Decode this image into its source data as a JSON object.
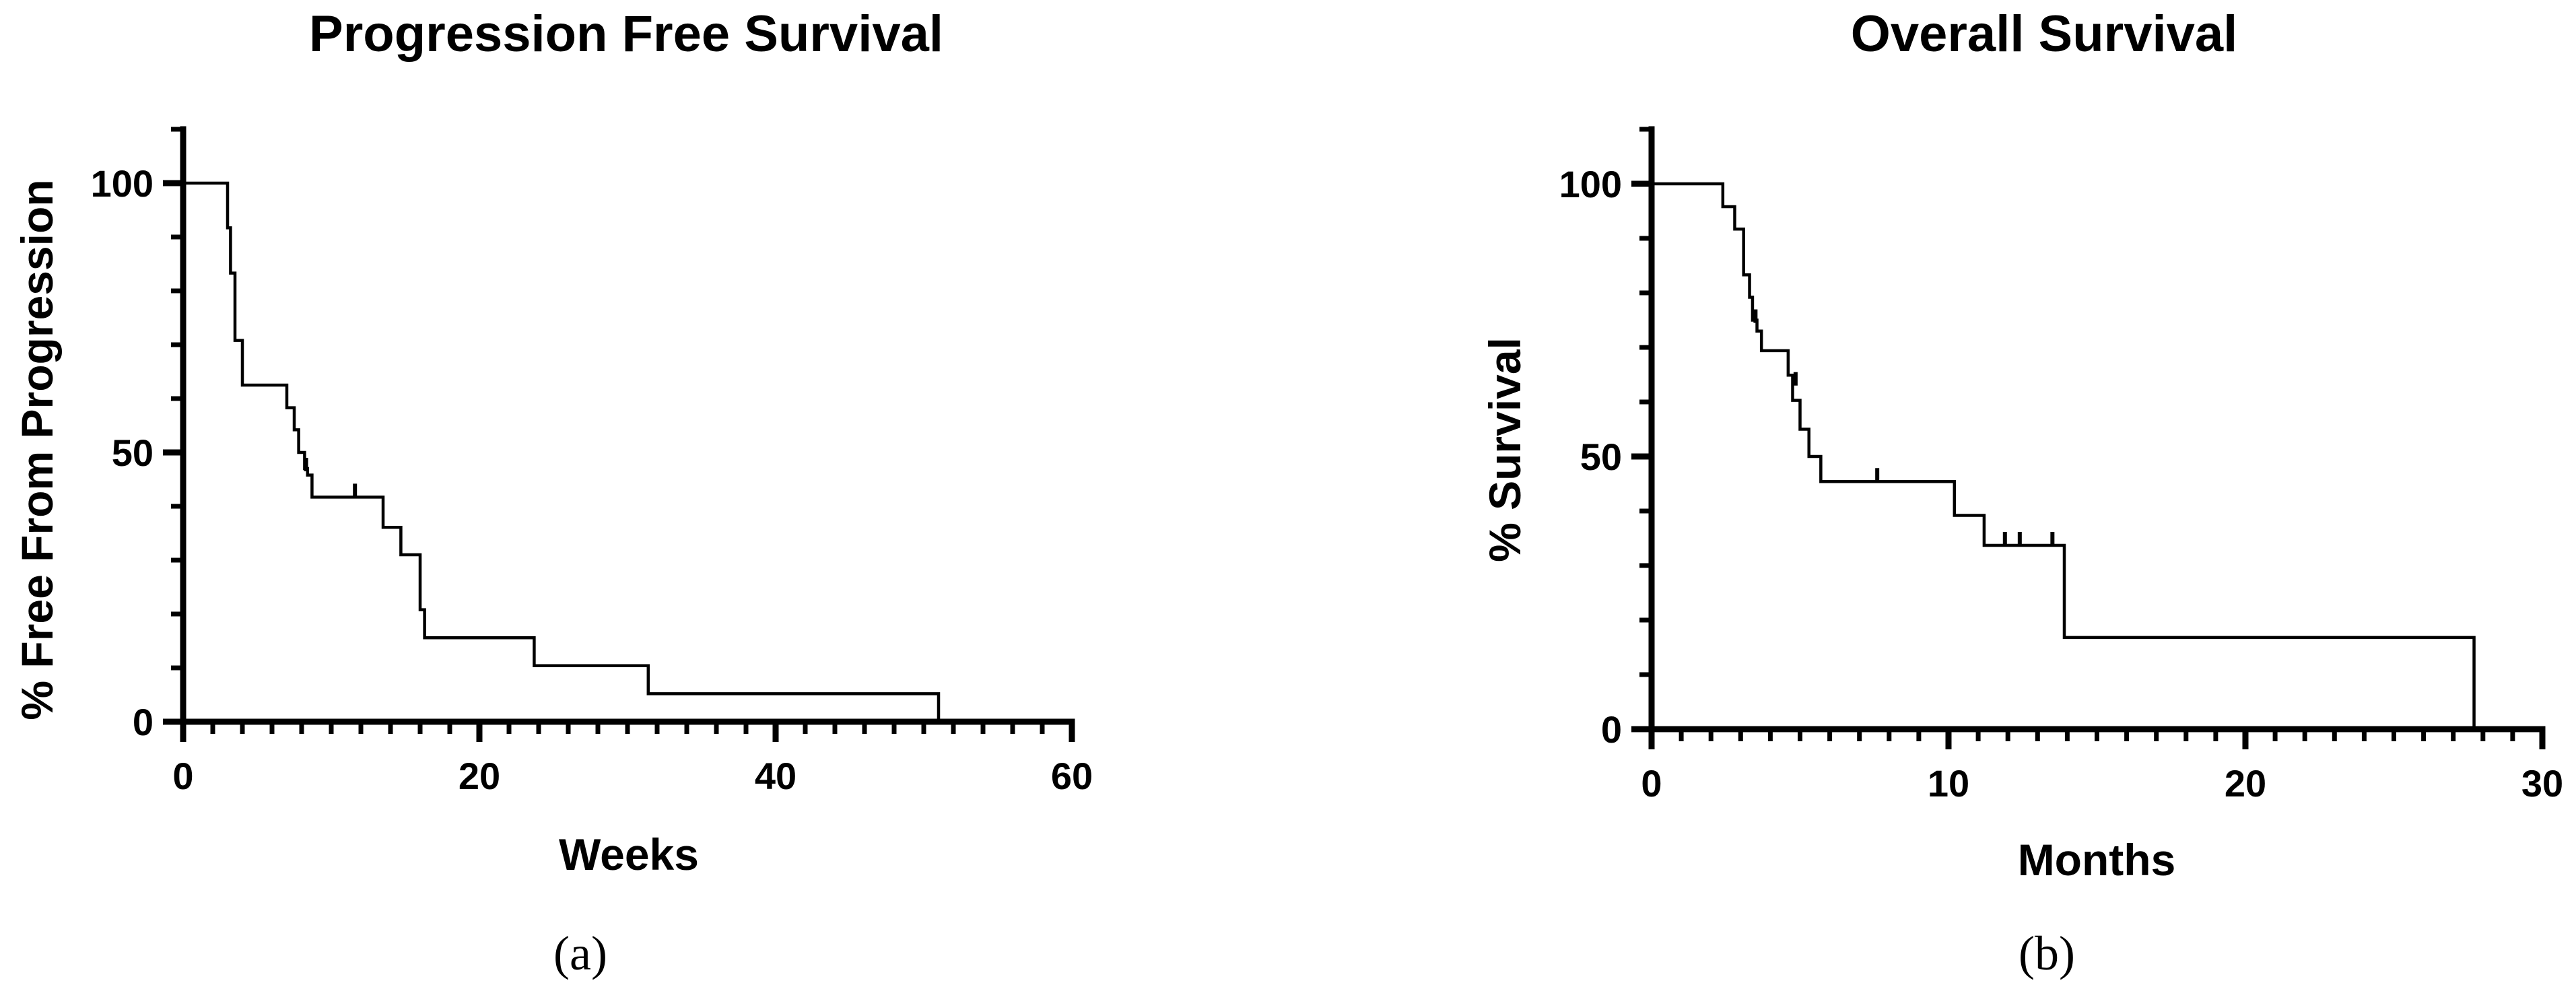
{
  "chart_data": [
    {
      "type": "line",
      "step": true,
      "title": "Progression Free Survival",
      "xlabel": "Weeks",
      "ylabel": "% Free From Progression",
      "panel_label": "(a)",
      "xlim": [
        0,
        60
      ],
      "ylim": [
        0,
        110
      ],
      "xticks": [
        0,
        20,
        40,
        60
      ],
      "yticks": [
        0,
        50,
        100
      ],
      "xtick_labels": [
        "0",
        "20",
        "40",
        "60"
      ],
      "ytick_labels": [
        "0",
        "50",
        "100"
      ],
      "x_minor_step": 2,
      "y_minor_step": 10,
      "grid": false,
      "series": [
        {
          "x": [
            0,
            3.0,
            3.2,
            3.5,
            4.0,
            7.0,
            7.5,
            7.8,
            8.2,
            8.4,
            8.7,
            13.5,
            14.7,
            16.0,
            16.3,
            23.7,
            31.4,
            51.0,
            51.0
          ],
          "y": [
            100,
            91.7,
            83.3,
            70.8,
            62.5,
            58.3,
            54.2,
            50.0,
            47.0,
            45.8,
            41.7,
            36.1,
            31.0,
            20.8,
            15.6,
            10.4,
            5.2,
            5.2,
            0
          ],
          "censored": [
            [
              8.3,
              46.5
            ],
            [
              11.6,
              41.7
            ]
          ]
        }
      ]
    },
    {
      "type": "line",
      "step": true,
      "title": "Overall Survival",
      "xlabel": "Months",
      "ylabel": "% Survival",
      "panel_label": "(b)",
      "xlim": [
        0,
        30
      ],
      "ylim": [
        0,
        110
      ],
      "xticks": [
        0,
        10,
        20,
        30
      ],
      "yticks": [
        0,
        50,
        100
      ],
      "xtick_labels": [
        "0",
        "10",
        "20",
        "30"
      ],
      "ytick_labels": [
        "0",
        "50",
        "100"
      ],
      "x_minor_step": 1,
      "y_minor_step": 10,
      "grid": false,
      "series": [
        {
          "x": [
            0,
            2.4,
            2.8,
            3.1,
            3.3,
            3.4,
            3.55,
            3.7,
            4.6,
            4.75,
            5.0,
            5.3,
            5.7,
            6.0,
            10.2,
            11.2,
            13.9,
            27.7,
            27.7
          ],
          "y": [
            100,
            95.8,
            91.7,
            83.3,
            79.2,
            75.0,
            73.0,
            69.4,
            64.9,
            60.3,
            55.0,
            50.0,
            45.4,
            45.4,
            39.2,
            33.7,
            16.8,
            16.8,
            0
          ],
          "censored": [
            [
              3.5,
              74.5
            ],
            [
              4.85,
              63.0
            ],
            [
              7.6,
              45.4
            ],
            [
              11.9,
              33.7
            ],
            [
              12.4,
              33.7
            ],
            [
              13.5,
              33.7
            ]
          ]
        }
      ]
    }
  ]
}
